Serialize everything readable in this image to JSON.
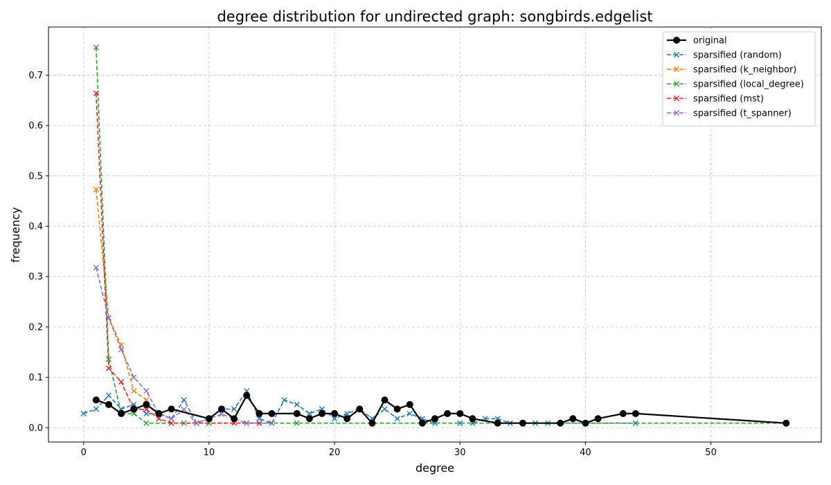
{
  "chart_data": {
    "type": "line",
    "title": "degree distribution for undirected graph: songbirds.edgelist",
    "xlabel": "degree",
    "ylabel": "frequency",
    "xlim": [
      -2.8,
      58.8
    ],
    "ylim": [
      -0.0285,
      0.7955
    ],
    "xticks": [
      0,
      10,
      20,
      30,
      40,
      50
    ],
    "yticks": [
      0.0,
      0.1,
      0.2,
      0.3,
      0.4,
      0.5,
      0.6,
      0.7
    ],
    "grid": true,
    "legend_position": "top-right",
    "series": [
      {
        "name": "original",
        "color": "#000000",
        "style": "solid",
        "marker": "circle",
        "points": [
          [
            1,
            0.055
          ],
          [
            2,
            0.046
          ],
          [
            3,
            0.028
          ],
          [
            4,
            0.037
          ],
          [
            5,
            0.046
          ],
          [
            6,
            0.028
          ],
          [
            7,
            0.037
          ],
          [
            10,
            0.018
          ],
          [
            11,
            0.037
          ],
          [
            12,
            0.018
          ],
          [
            13,
            0.064
          ],
          [
            14,
            0.028
          ],
          [
            15,
            0.028
          ],
          [
            17,
            0.028
          ],
          [
            18,
            0.018
          ],
          [
            19,
            0.028
          ],
          [
            20,
            0.028
          ],
          [
            21,
            0.018
          ],
          [
            22,
            0.037
          ],
          [
            23,
            0.009
          ],
          [
            24,
            0.055
          ],
          [
            25,
            0.037
          ],
          [
            26,
            0.046
          ],
          [
            27,
            0.009
          ],
          [
            28,
            0.018
          ],
          [
            29,
            0.028
          ],
          [
            30,
            0.028
          ],
          [
            31,
            0.018
          ],
          [
            33,
            0.009
          ],
          [
            35,
            0.009
          ],
          [
            38,
            0.009
          ],
          [
            39,
            0.018
          ],
          [
            40,
            0.009
          ],
          [
            41,
            0.018
          ],
          [
            43,
            0.028
          ],
          [
            44,
            0.028
          ],
          [
            56,
            0.009
          ]
        ]
      },
      {
        "name": "sparsified (random)",
        "color": "#1f77b4",
        "style": "dashed",
        "marker": "x",
        "points": [
          [
            0,
            0.028
          ],
          [
            1,
            0.037
          ],
          [
            2,
            0.064
          ],
          [
            3,
            0.037
          ],
          [
            4,
            0.046
          ],
          [
            5,
            0.028
          ],
          [
            6,
            0.028
          ],
          [
            7,
            0.018
          ],
          [
            8,
            0.055
          ],
          [
            9,
            0.009
          ],
          [
            10,
            0.018
          ],
          [
            11,
            0.037
          ],
          [
            12,
            0.037
          ],
          [
            13,
            0.073
          ],
          [
            14,
            0.018
          ],
          [
            15,
            0.009
          ],
          [
            16,
            0.055
          ],
          [
            17,
            0.046
          ],
          [
            18,
            0.028
          ],
          [
            19,
            0.037
          ],
          [
            20,
            0.018
          ],
          [
            21,
            0.028
          ],
          [
            22,
            0.037
          ],
          [
            23,
            0.018
          ],
          [
            24,
            0.037
          ],
          [
            25,
            0.018
          ],
          [
            26,
            0.028
          ],
          [
            27,
            0.018
          ],
          [
            28,
            0.009
          ],
          [
            30,
            0.009
          ],
          [
            31,
            0.009
          ],
          [
            32,
            0.018
          ],
          [
            33,
            0.018
          ],
          [
            34,
            0.009
          ],
          [
            36,
            0.009
          ],
          [
            37,
            0.009
          ],
          [
            40,
            0.009
          ],
          [
            44,
            0.009
          ]
        ]
      },
      {
        "name": "sparsified (k_neighbor)",
        "color": "#ff7f0e",
        "style": "dashed",
        "marker": "x",
        "points": [
          [
            1,
            0.473
          ],
          [
            2,
            0.218
          ],
          [
            3,
            0.164
          ],
          [
            4,
            0.073
          ],
          [
            5,
            0.055
          ],
          [
            6,
            0.018
          ]
        ]
      },
      {
        "name": "sparsified (local_degree)",
        "color": "#2ca02c",
        "style": "dashed",
        "marker": "x",
        "points": [
          [
            1,
            0.755
          ],
          [
            2,
            0.136
          ],
          [
            3,
            0.028
          ],
          [
            4,
            0.028
          ],
          [
            5,
            0.009
          ],
          [
            8,
            0.009
          ],
          [
            10,
            0.009
          ],
          [
            17,
            0.009
          ],
          [
            56,
            0.009
          ]
        ]
      },
      {
        "name": "sparsified (mst)",
        "color": "#d62728",
        "style": "dashed",
        "marker": "x",
        "points": [
          [
            1,
            0.664
          ],
          [
            2,
            0.118
          ],
          [
            3,
            0.091
          ],
          [
            4,
            0.036
          ],
          [
            5,
            0.036
          ],
          [
            6,
            0.018
          ],
          [
            7,
            0.009
          ],
          [
            12,
            0.009
          ],
          [
            14,
            0.009
          ]
        ]
      },
      {
        "name": "sparsified (t_spanner)",
        "color": "#9467bd",
        "style": "dashed",
        "marker": "x",
        "points": [
          [
            1,
            0.318
          ],
          [
            2,
            0.218
          ],
          [
            3,
            0.155
          ],
          [
            4,
            0.1
          ],
          [
            5,
            0.073
          ],
          [
            6,
            0.027
          ],
          [
            7,
            0.018
          ],
          [
            8,
            0.036
          ],
          [
            9,
            0.009
          ],
          [
            11,
            0.027
          ],
          [
            13,
            0.009
          ],
          [
            15,
            0.009
          ]
        ]
      }
    ]
  }
}
